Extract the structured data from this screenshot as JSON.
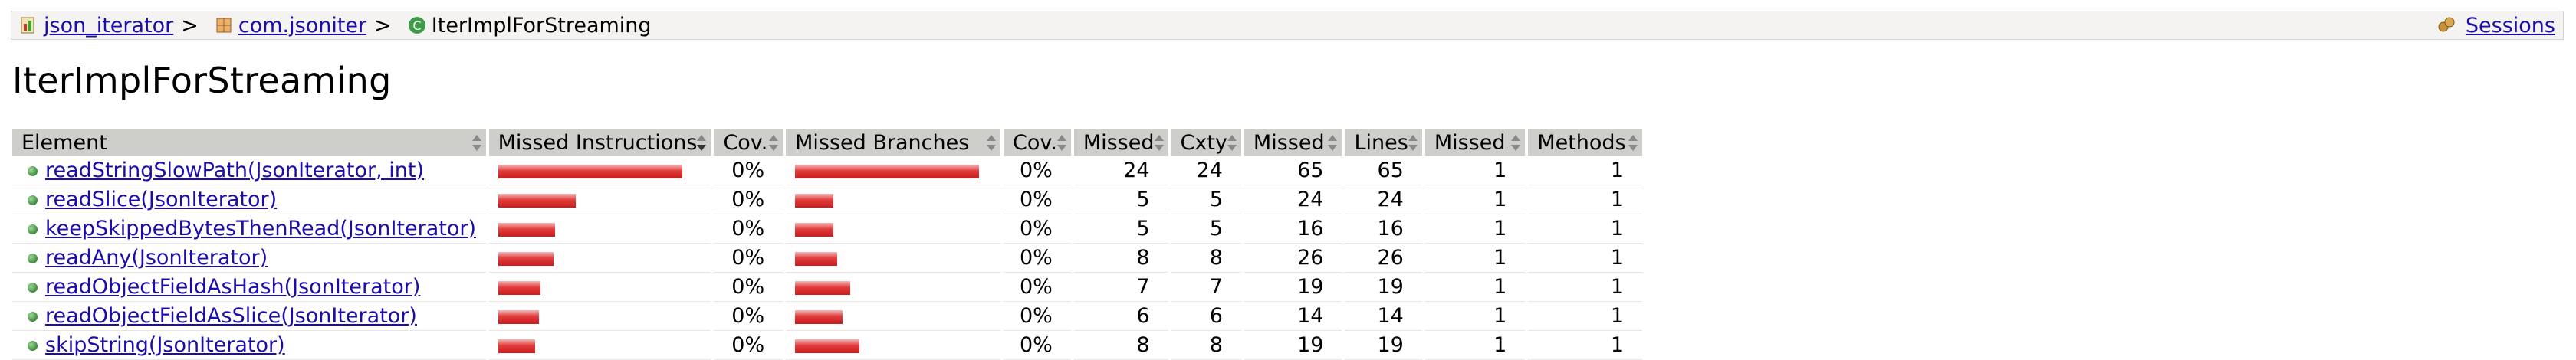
{
  "breadcrumb": {
    "items": [
      {
        "label": "json_iterator",
        "icon": "report-icon"
      },
      {
        "label": "com.jsoniter",
        "icon": "package-icon"
      },
      {
        "label": "IterImplForStreaming",
        "icon": "class-icon"
      }
    ],
    "separator": ">",
    "sessions_label": "Sessions"
  },
  "page_title": "IterImplForStreaming",
  "table": {
    "headers": [
      "Element",
      "Missed Instructions",
      "Cov.",
      "Missed Branches",
      "Cov.",
      "Missed",
      "Cxty",
      "Missed",
      "Lines",
      "Missed",
      "Methods"
    ],
    "rows": [
      {
        "name": "readStringSlowPath(JsonIterator, int)",
        "instr_missed_frac": 1.0,
        "instr_cov": "0%",
        "branch_missed_frac": 1.0,
        "branch_cov": "0%",
        "cxty_missed": "24",
        "cxty": "24",
        "lines_missed": "65",
        "lines": "65",
        "methods_missed": "1",
        "methods": "1"
      },
      {
        "name": "readSlice(JsonIterator)",
        "instr_missed_frac": 0.42,
        "instr_cov": "0%",
        "branch_missed_frac": 0.21,
        "branch_cov": "0%",
        "cxty_missed": "5",
        "cxty": "5",
        "lines_missed": "24",
        "lines": "24",
        "methods_missed": "1",
        "methods": "1"
      },
      {
        "name": "keepSkippedBytesThenRead(JsonIterator)",
        "instr_missed_frac": 0.31,
        "instr_cov": "0%",
        "branch_missed_frac": 0.21,
        "branch_cov": "0%",
        "cxty_missed": "5",
        "cxty": "5",
        "lines_missed": "16",
        "lines": "16",
        "methods_missed": "1",
        "methods": "1"
      },
      {
        "name": "readAny(JsonIterator)",
        "instr_missed_frac": 0.3,
        "instr_cov": "0%",
        "branch_missed_frac": 0.23,
        "branch_cov": "0%",
        "cxty_missed": "8",
        "cxty": "8",
        "lines_missed": "26",
        "lines": "26",
        "methods_missed": "1",
        "methods": "1"
      },
      {
        "name": "readObjectFieldAsHash(JsonIterator)",
        "instr_missed_frac": 0.23,
        "instr_cov": "0%",
        "branch_missed_frac": 0.3,
        "branch_cov": "0%",
        "cxty_missed": "7",
        "cxty": "7",
        "lines_missed": "19",
        "lines": "19",
        "methods_missed": "1",
        "methods": "1"
      },
      {
        "name": "readObjectFieldAsSlice(JsonIterator)",
        "instr_missed_frac": 0.22,
        "instr_cov": "0%",
        "branch_missed_frac": 0.26,
        "branch_cov": "0%",
        "cxty_missed": "6",
        "cxty": "6",
        "lines_missed": "14",
        "lines": "14",
        "methods_missed": "1",
        "methods": "1"
      },
      {
        "name": "skipString(JsonIterator)",
        "instr_missed_frac": 0.2,
        "instr_cov": "0%",
        "branch_missed_frac": 0.35,
        "branch_cov": "0%",
        "cxty_missed": "8",
        "cxty": "8",
        "lines_missed": "19",
        "lines": "19",
        "methods_missed": "1",
        "methods": "1"
      }
    ]
  },
  "colors": {
    "bar_missed": "#d42a2a",
    "header_bg": "#cececb",
    "link": "#1a0dab"
  }
}
